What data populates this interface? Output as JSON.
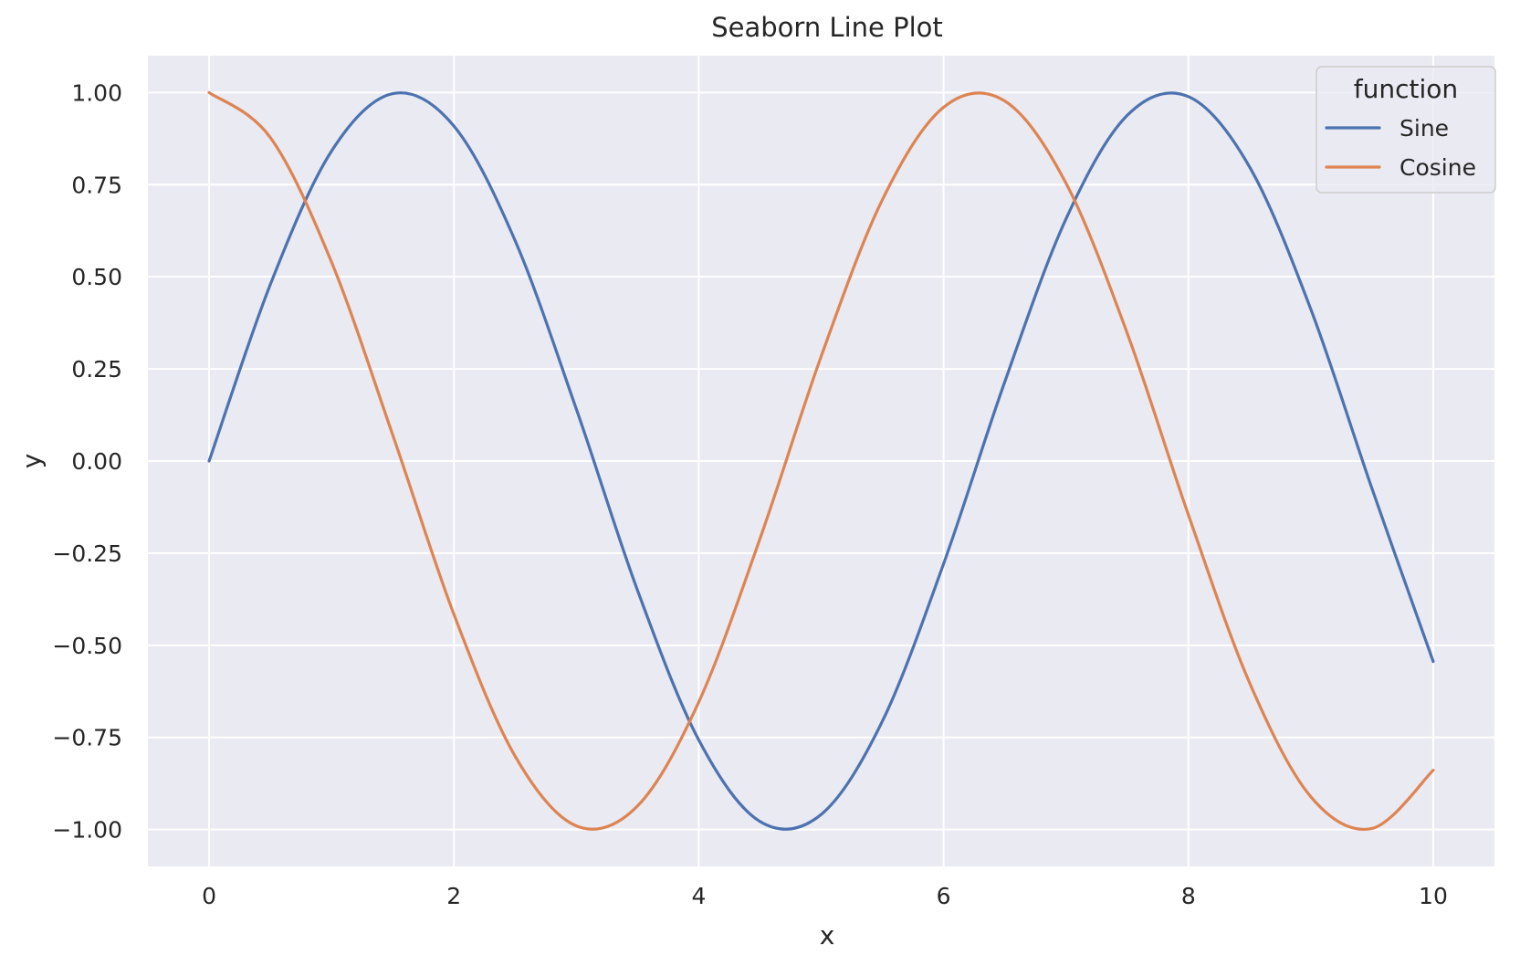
{
  "chart_data": {
    "type": "line",
    "title": "Seaborn Line Plot",
    "xlabel": "x",
    "ylabel": "y",
    "xlim": [
      -0.5,
      10.5
    ],
    "ylim": [
      -1.1,
      1.1
    ],
    "grid": true,
    "background_color": "#eaeaf2",
    "grid_color": "#ffffff",
    "x_ticks": [
      0,
      2,
      4,
      6,
      8,
      10
    ],
    "x_tick_labels": [
      "0",
      "2",
      "4",
      "6",
      "8",
      "10"
    ],
    "y_ticks": [
      1.0,
      0.75,
      0.5,
      0.25,
      0.0,
      -0.25,
      -0.5,
      -0.75,
      -1.0
    ],
    "y_tick_labels": [
      "1.00",
      "0.75",
      "0.50",
      "0.25",
      "0.00",
      "−0.25",
      "−0.50",
      "−0.75",
      "−1.00"
    ],
    "legend": {
      "title": "function",
      "placement": "top-right"
    },
    "x": [
      0.0,
      0.5,
      1.0,
      1.5,
      2.0,
      2.5,
      3.0,
      3.5,
      4.0,
      4.5,
      5.0,
      5.5,
      6.0,
      6.5,
      7.0,
      7.5,
      8.0,
      8.5,
      9.0,
      9.5,
      10.0
    ],
    "series": [
      {
        "name": "Sine",
        "color": "#4c72b0",
        "values": [
          0.0,
          0.479,
          0.841,
          0.997,
          0.909,
          0.598,
          0.141,
          -0.351,
          -0.757,
          -0.978,
          -0.959,
          -0.706,
          -0.279,
          0.215,
          0.657,
          0.938,
          0.989,
          0.798,
          0.412,
          -0.075,
          -0.544
        ]
      },
      {
        "name": "Cosine",
        "color": "#dd8452",
        "values": [
          1.0,
          0.878,
          0.54,
          0.071,
          -0.416,
          -0.801,
          -0.99,
          -0.936,
          -0.654,
          -0.211,
          0.284,
          0.709,
          0.96,
          0.977,
          0.754,
          0.347,
          -0.146,
          -0.602,
          -0.911,
          -0.997,
          -0.839
        ]
      }
    ]
  }
}
